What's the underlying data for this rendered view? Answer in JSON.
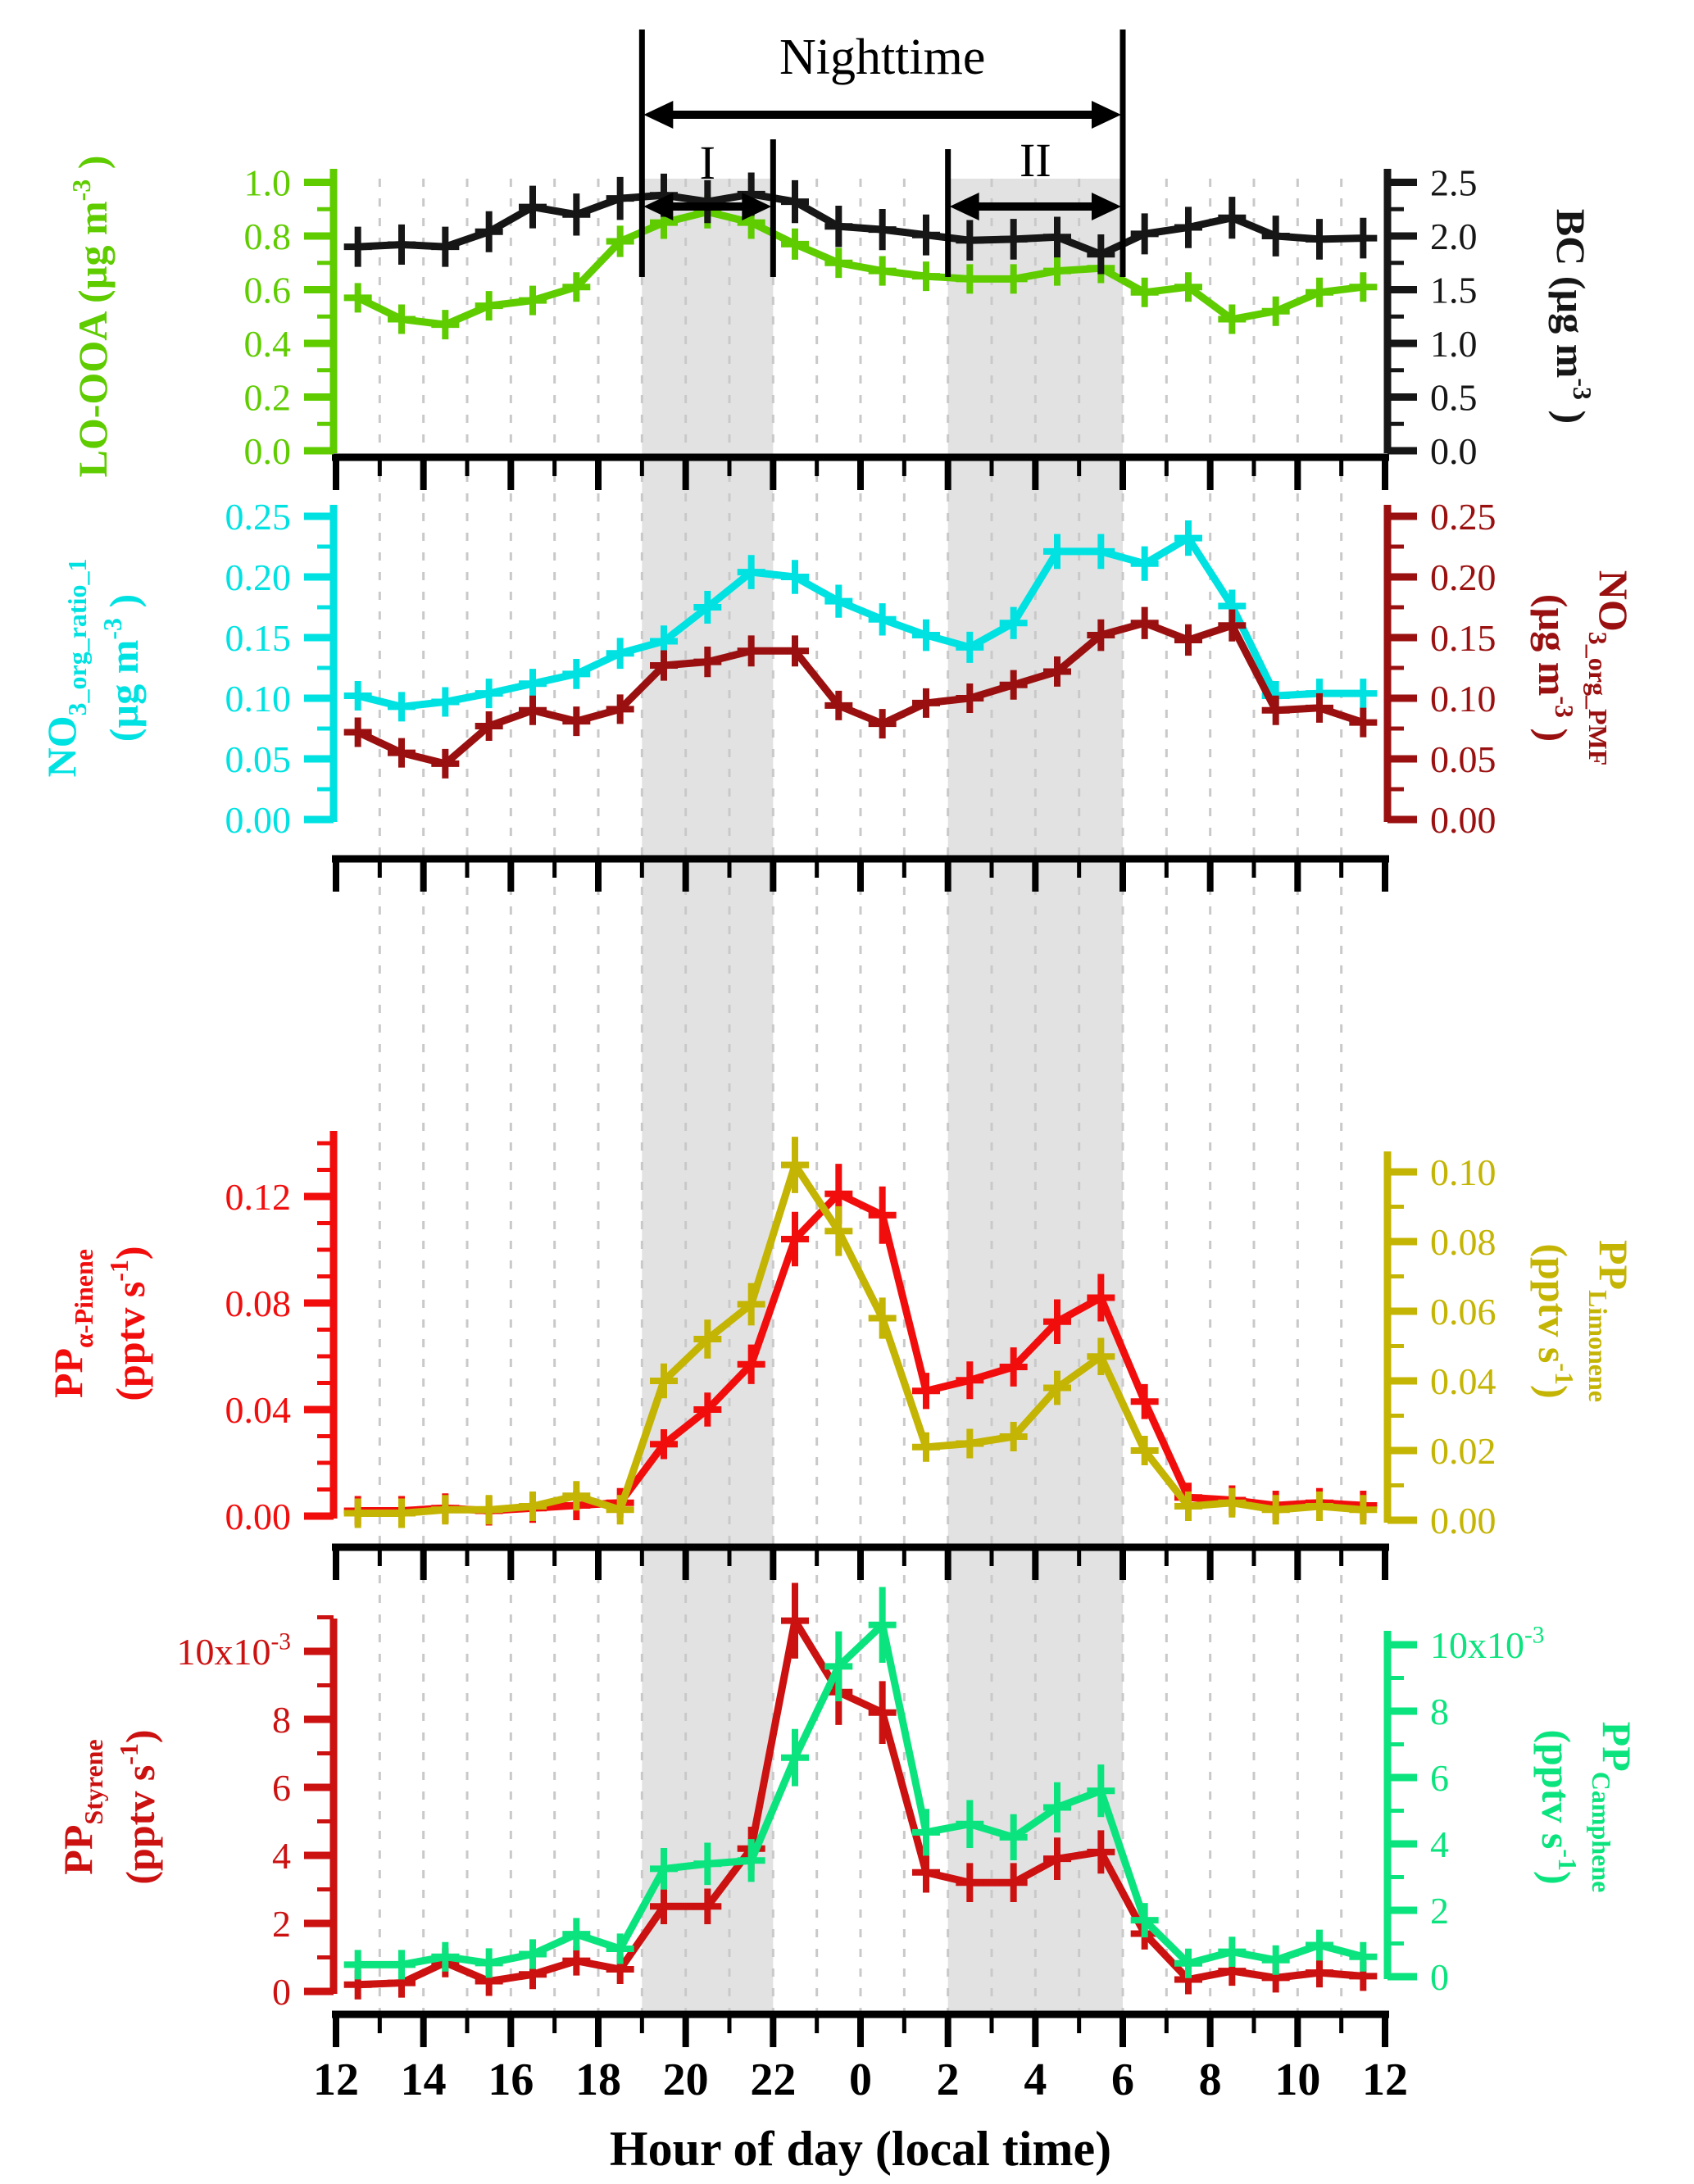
{
  "figure": {
    "annotations": {
      "nighttime": "Nighttime",
      "region_i": "I",
      "region_ii": "II"
    },
    "x_axis": {
      "label": "Hour of day (local time)",
      "tick_labels": [
        "12",
        "14",
        "16",
        "18",
        "20",
        "22",
        "0",
        "2",
        "4",
        "6",
        "8",
        "10",
        "12"
      ],
      "hours_start": 12,
      "hours_span": 24
    },
    "regions": {
      "nighttime": {
        "from": 7,
        "to": 18
      },
      "I": {
        "from": 7,
        "to": 10
      },
      "II": {
        "from": 14,
        "to": 18
      }
    },
    "shading_color": "#e2e2e2",
    "gridline_color": "#c9c9c9"
  },
  "hours": [
    12.5,
    13.5,
    14.5,
    15.5,
    16.5,
    17.5,
    18.5,
    19.5,
    20.5,
    21.5,
    22.5,
    23.5,
    0.5,
    1.5,
    2.5,
    3.5,
    4.5,
    5.5,
    6.5,
    7.5,
    8.5,
    9.5,
    10.5,
    11.5
  ],
  "chart_data": [
    {
      "type": "line",
      "panel": 1,
      "left_axis": {
        "color": "#5fcc00",
        "title_lines": [
          [
            {
              "t": "LO-OOA (µg m"
            },
            {
              "t": "-3",
              "sup": 1
            },
            {
              "t": " )"
            }
          ]
        ],
        "ylim": [
          0,
          1.0
        ],
        "ticks": [
          1.0,
          0.8,
          0.6,
          0.4,
          0.2,
          0.0
        ],
        "tick_labels": [
          "1.0",
          "0.8",
          "0.6",
          "0.4",
          "0.2",
          "0.0"
        ],
        "minor_step": 0.1
      },
      "right_axis": {
        "color": "#161616",
        "title_lines": [
          [
            {
              "t": "BC (µg m"
            },
            {
              "t": "-3",
              "sup": 1
            },
            {
              "t": " )"
            }
          ]
        ],
        "ylim": [
          0,
          2.5
        ],
        "ticks": [
          2.5,
          2.0,
          1.5,
          1.0,
          0.5,
          0.0
        ],
        "tick_labels": [
          "2.5",
          "2.0",
          "1.5",
          "1.0",
          "0.5",
          "0.0"
        ],
        "minor_step": 0.25
      },
      "series": [
        {
          "name": "LO-OOA",
          "axis": "left",
          "color": "#5fcc00",
          "values": [
            0.57,
            0.49,
            0.47,
            0.54,
            0.56,
            0.61,
            0.78,
            0.85,
            0.89,
            0.85,
            0.77,
            0.7,
            0.67,
            0.65,
            0.64,
            0.64,
            0.67,
            0.68,
            0.59,
            0.61,
            0.49,
            0.52,
            0.59,
            0.61
          ],
          "err_base": 0.035,
          "err_scale": 0.03
        },
        {
          "name": "BC",
          "axis": "right",
          "color": "#161616",
          "values": [
            1.9,
            1.92,
            1.9,
            2.04,
            2.27,
            2.2,
            2.35,
            2.38,
            2.32,
            2.39,
            2.32,
            2.09,
            2.06,
            2.01,
            1.96,
            1.97,
            1.99,
            1.83,
            2.02,
            2.08,
            2.17,
            2.0,
            1.97,
            1.98
          ],
          "err_base": 0.13,
          "err_scale": 0.03
        }
      ]
    },
    {
      "type": "line",
      "panel": 2,
      "left_axis": {
        "color": "#00e2e2",
        "title_lines": [
          [
            {
              "t": "NO"
            },
            {
              "t": "3_org_ratio_1",
              "sub": 1
            }
          ],
          [
            {
              "t": "(µg m"
            },
            {
              "t": "-3",
              "sup": 1
            },
            {
              "t": " )"
            }
          ]
        ],
        "ylim": [
          0,
          0.25
        ],
        "ticks": [
          0.25,
          0.2,
          0.15,
          0.1,
          0.05,
          0.0
        ],
        "tick_labels": [
          "0.25",
          "0.20",
          "0.15",
          "0.10",
          "0.05",
          "0.00"
        ],
        "minor_step": 0.025
      },
      "right_axis": {
        "color": "#9a1010",
        "title_lines": [
          [
            {
              "t": "NO"
            },
            {
              "t": "3_org_PMF",
              "sub": 1
            }
          ],
          [
            {
              "t": "(µg m"
            },
            {
              "t": "-3",
              "sup": 1
            },
            {
              "t": " )"
            }
          ]
        ],
        "ylim": [
          0,
          0.25
        ],
        "ticks": [
          0.25,
          0.2,
          0.15,
          0.1,
          0.05,
          0.0
        ],
        "tick_labels": [
          "0.25",
          "0.20",
          "0.15",
          "0.10",
          "0.05",
          "0.00"
        ],
        "minor_step": 0.025
      },
      "series": [
        {
          "name": "NO3_org_ratio_1",
          "axis": "left",
          "color": "#00e2e2",
          "values": [
            0.102,
            0.093,
            0.097,
            0.104,
            0.112,
            0.12,
            0.137,
            0.147,
            0.175,
            0.204,
            0.2,
            0.18,
            0.165,
            0.152,
            0.142,
            0.162,
            0.221,
            0.221,
            0.211,
            0.232,
            0.176,
            0.102,
            0.104,
            0.104
          ],
          "err_base": 0.01,
          "err_scale": 0.02
        },
        {
          "name": "NO3_org_PMF",
          "axis": "right",
          "color": "#9a1010",
          "values": [
            0.072,
            0.055,
            0.046,
            0.077,
            0.09,
            0.081,
            0.091,
            0.127,
            0.13,
            0.139,
            0.139,
            0.094,
            0.079,
            0.096,
            0.1,
            0.111,
            0.122,
            0.152,
            0.162,
            0.148,
            0.16,
            0.09,
            0.092,
            0.08
          ],
          "err_base": 0.01,
          "err_scale": 0.02
        }
      ]
    },
    {
      "type": "line",
      "panel": 3,
      "left_axis": {
        "color": "#f20d0d",
        "title_lines": [
          [
            {
              "t": "PP"
            },
            {
              "t": "α-Pinene",
              "sub": 1
            }
          ],
          [
            {
              "t": "(pptv s"
            },
            {
              "t": "-1",
              "sup": 1
            },
            {
              "t": ")"
            }
          ]
        ],
        "ylim": [
          0,
          0.14
        ],
        "ticks": [
          0.12,
          0.08,
          0.04,
          0.0
        ],
        "tick_labels": [
          "0.12",
          "0.08",
          "0.04",
          "0.00"
        ],
        "minor_step": 0.01
      },
      "right_axis": {
        "color": "#c4b404",
        "title_lines": [
          [
            {
              "t": "PP"
            },
            {
              "t": "Limonene",
              "sub": 1
            }
          ],
          [
            {
              "t": "(pptv s"
            },
            {
              "t": "-1",
              "sup": 1
            },
            {
              "t": ")"
            }
          ]
        ],
        "ylim": [
          0,
          0.1
        ],
        "ticks": [
          0.1,
          0.08,
          0.06,
          0.04,
          0.02,
          0.0
        ],
        "tick_labels": [
          "0.10",
          "0.08",
          "0.06",
          "0.04",
          "0.02",
          "0.00"
        ],
        "minor_step": 0.01
      },
      "series": [
        {
          "name": "PP_alpha-Pinene",
          "axis": "left",
          "color": "#f20d0d",
          "values": [
            0.002,
            0.002,
            0.003,
            0.002,
            0.003,
            0.004,
            0.005,
            0.027,
            0.04,
            0.057,
            0.104,
            0.121,
            0.113,
            0.047,
            0.051,
            0.056,
            0.073,
            0.082,
            0.043,
            0.007,
            0.006,
            0.004,
            0.005,
            0.004
          ],
          "err_base": 0.004,
          "err_scale": 0.06
        },
        {
          "name": "PP_Limonene",
          "axis": "right",
          "color": "#c4b404",
          "values": [
            0.002,
            0.002,
            0.003,
            0.003,
            0.004,
            0.007,
            0.003,
            0.04,
            0.052,
            0.062,
            0.102,
            0.083,
            0.058,
            0.021,
            0.022,
            0.024,
            0.038,
            0.047,
            0.02,
            0.004,
            0.005,
            0.003,
            0.004,
            0.003
          ],
          "err_base": 0.003,
          "err_scale": 0.05
        }
      ]
    },
    {
      "type": "line",
      "panel": 4,
      "left_axis": {
        "color": "#cc1111",
        "title_lines": [
          [
            {
              "t": "PP"
            },
            {
              "t": "Styrene",
              "sub": 1
            }
          ],
          [
            {
              "t": "(pptv s"
            },
            {
              "t": "-1",
              "sup": 1
            },
            {
              "t": ")"
            }
          ]
        ],
        "ylim": [
          0,
          0.011
        ],
        "unit_scale": "10x10-3",
        "ticks": [
          10,
          8,
          6,
          4,
          2,
          0
        ],
        "tick_labels": [
          [
            {
              "t": "10x10"
            },
            {
              "t": "-3",
              "sup": 1
            }
          ],
          "8",
          "6",
          "4",
          "2",
          "0"
        ],
        "minor_step": 1
      },
      "right_axis": {
        "color": "#0be47e",
        "title_lines": [
          [
            {
              "t": "PP"
            },
            {
              "t": "Camphene",
              "sub": 1
            }
          ],
          [
            {
              "t": "(pptv s"
            },
            {
              "t": "-1",
              "sup": 1
            },
            {
              "t": ")"
            }
          ]
        ],
        "ylim": [
          0,
          0.011
        ],
        "unit_scale": "10x10-3",
        "ticks": [
          10,
          8,
          6,
          4,
          2,
          0
        ],
        "tick_labels": [
          [
            {
              "t": "10x10"
            },
            {
              "t": "-3",
              "sup": 1
            }
          ],
          "8",
          "6",
          "4",
          "2",
          "0"
        ],
        "minor_step": 1
      },
      "series": [
        {
          "name": "PP_Styrene",
          "axis": "left",
          "color": "#cc1111",
          "values": [
            0.2,
            0.25,
            0.85,
            0.3,
            0.5,
            0.9,
            0.65,
            2.5,
            2.5,
            4.2,
            10.9,
            8.8,
            8.2,
            3.5,
            3.2,
            3.2,
            3.9,
            4.1,
            1.7,
            0.35,
            0.6,
            0.4,
            0.55,
            0.45
          ],
          "err_base": 0.35,
          "err_scale": 0.07
        },
        {
          "name": "PP_Camphene",
          "axis": "right",
          "color": "#0be47e",
          "values": [
            0.36,
            0.36,
            0.6,
            0.41,
            0.68,
            1.28,
            0.84,
            3.25,
            3.4,
            3.5,
            6.6,
            9.35,
            10.6,
            4.35,
            4.6,
            4.2,
            5.1,
            5.6,
            1.7,
            0.4,
            0.75,
            0.5,
            0.95,
            0.6
          ],
          "err_base": 0.4,
          "err_scale": 0.07
        }
      ]
    }
  ]
}
